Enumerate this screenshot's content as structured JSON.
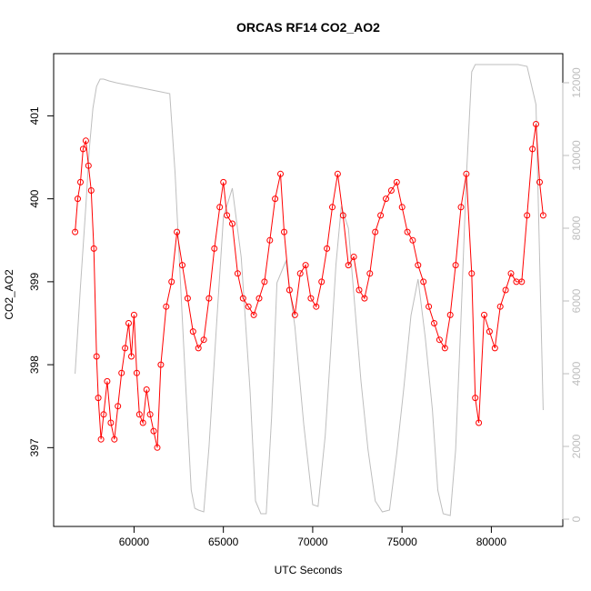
{
  "chart_data": {
    "type": "line",
    "title": "ORCAS RF14 CO2_AO2",
    "xlabel": "UTC Seconds",
    "ylabel": "CO2_AO2",
    "xlim": [
      55500,
      84000
    ],
    "ylim": [
      396.05,
      401.75
    ],
    "xticks": [
      60000,
      65000,
      70000,
      75000,
      80000
    ],
    "yticks": [
      397,
      398,
      399,
      400,
      401
    ],
    "y2lim": [
      -200,
      12800
    ],
    "y2ticks": [
      0,
      2000,
      4000,
      6000,
      8000,
      10000,
      12000
    ],
    "colors": {
      "primary": "#ff0000",
      "secondary": "#bebebe",
      "frame": "#000000"
    },
    "grid": false,
    "series": [
      {
        "axis": "left",
        "style": "line+circles",
        "x": [
          56700,
          56850,
          57000,
          57150,
          57300,
          57450,
          57600,
          57750,
          57900,
          58000,
          58150,
          58300,
          58500,
          58700,
          58900,
          59100,
          59300,
          59500,
          59700,
          59850,
          60000,
          60150,
          60300,
          60500,
          60700,
          60900,
          61100,
          61300,
          61500,
          61800,
          62100,
          62400,
          62700,
          63000,
          63300,
          63600,
          63900,
          64200,
          64500,
          64800,
          65000,
          65200,
          65500,
          65800,
          66100,
          66400,
          66700,
          67000,
          67300,
          67600,
          67900,
          68200,
          68400,
          68700,
          69000,
          69300,
          69600,
          69900,
          70200,
          70500,
          70800,
          71100,
          71400,
          71700,
          72000,
          72300,
          72600,
          72900,
          73200,
          73500,
          73800,
          74100,
          74400,
          74700,
          75000,
          75300,
          75600,
          75900,
          76200,
          76500,
          76800,
          77100,
          77400,
          77700,
          78000,
          78300,
          78600,
          78900,
          79100,
          79300,
          79600,
          79900,
          80200,
          80500,
          80800,
          81100,
          81400,
          81700,
          82000,
          82300,
          82500,
          82700,
          82900
        ],
        "y": [
          399.6,
          400.0,
          400.2,
          400.6,
          400.7,
          400.4,
          400.1,
          399.4,
          398.1,
          397.6,
          397.1,
          397.4,
          397.8,
          397.3,
          397.1,
          397.5,
          397.9,
          398.2,
          398.5,
          398.1,
          398.6,
          397.9,
          397.4,
          397.3,
          397.7,
          397.4,
          397.2,
          397.0,
          398.0,
          398.7,
          399.0,
          399.6,
          399.2,
          398.8,
          398.4,
          398.2,
          398.3,
          398.8,
          399.4,
          399.9,
          400.2,
          399.8,
          399.7,
          399.1,
          398.8,
          398.7,
          398.6,
          398.8,
          399.0,
          399.5,
          400.0,
          400.3,
          399.6,
          398.9,
          398.6,
          399.1,
          399.2,
          398.8,
          398.7,
          399.0,
          399.4,
          399.9,
          400.3,
          399.8,
          399.2,
          399.3,
          398.9,
          398.8,
          399.1,
          399.6,
          399.8,
          400.0,
          400.1,
          400.2,
          399.9,
          399.6,
          399.5,
          399.2,
          399.0,
          398.7,
          398.5,
          398.3,
          398.2,
          398.6,
          399.2,
          399.9,
          400.3,
          399.1,
          397.6,
          397.3,
          398.6,
          398.4,
          398.2,
          398.7,
          398.9,
          399.1,
          399.0,
          399.0,
          399.8,
          400.6,
          400.9,
          400.2,
          399.8
        ]
      },
      {
        "axis": "right",
        "style": "line",
        "x": [
          56700,
          57000,
          57300,
          57500,
          57700,
          57900,
          58100,
          58300,
          58600,
          59000,
          59500,
          60000,
          60500,
          61000,
          61500,
          62000,
          62300,
          62600,
          62900,
          63200,
          63400,
          63600,
          63900,
          64200,
          64600,
          65000,
          65500,
          66000,
          66500,
          66800,
          67100,
          67400,
          67700,
          68000,
          68500,
          69000,
          69500,
          70000,
          70300,
          70700,
          71000,
          71300,
          71600,
          72000,
          72300,
          72700,
          73100,
          73500,
          73900,
          74300,
          74700,
          75100,
          75500,
          75900,
          76300,
          76700,
          77000,
          77300,
          77700,
          78000,
          78300,
          78600,
          78900,
          79100,
          79500,
          80000,
          80500,
          81000,
          81500,
          82000,
          82500,
          82900
        ],
        "y": [
          4000,
          6400,
          8600,
          10200,
          11300,
          11900,
          12100,
          12100,
          12050,
          12000,
          11950,
          11900,
          11850,
          11800,
          11750,
          11700,
          9500,
          6500,
          3600,
          800,
          300,
          250,
          200,
          2000,
          5200,
          8300,
          9100,
          7200,
          3500,
          500,
          150,
          150,
          2800,
          6500,
          7100,
          5300,
          2600,
          400,
          350,
          2300,
          4600,
          7000,
          8600,
          8000,
          6200,
          3800,
          1900,
          500,
          200,
          250,
          1800,
          3600,
          5600,
          6600,
          5000,
          3000,
          800,
          150,
          100,
          1900,
          5500,
          9400,
          12300,
          12500,
          12500,
          12500,
          12500,
          12500,
          12500,
          12450,
          11400,
          3000
        ]
      }
    ]
  }
}
